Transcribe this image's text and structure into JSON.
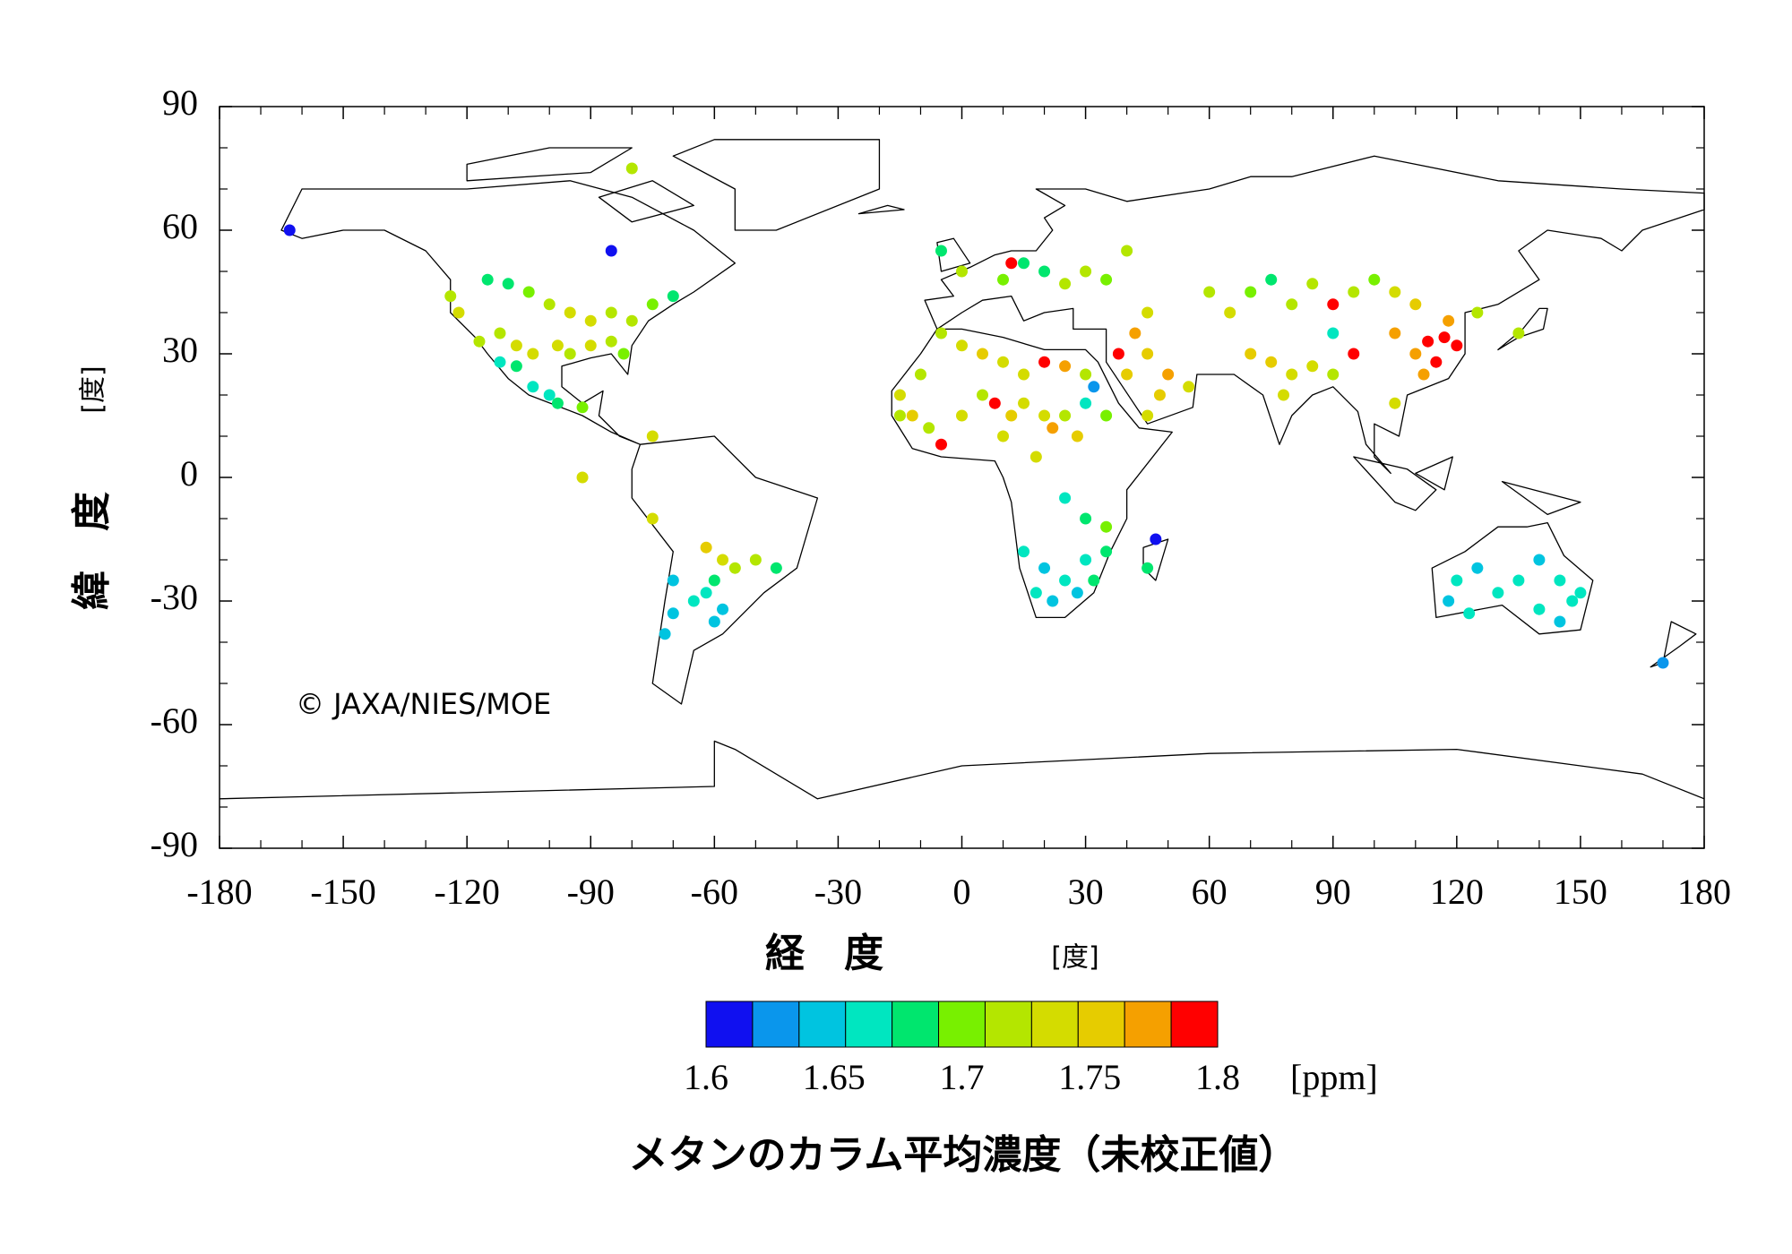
{
  "chart_data": {
    "type": "scatter",
    "title": "メタンのカラム平均濃度（未校正値）",
    "x_label": "経　度",
    "x_unit": "[度]",
    "y_label": "緯　度",
    "y_unit": "[度]",
    "copyright": "© JAXA/NIES/MOE",
    "colorbar_unit": "[ppm]",
    "xlim": [
      -180,
      180
    ],
    "ylim": [
      -90,
      90
    ],
    "xticks": [
      -180,
      -150,
      -120,
      -90,
      -60,
      -30,
      0,
      30,
      60,
      90,
      120,
      150,
      180
    ],
    "yticks": [
      -90,
      -60,
      -30,
      0,
      30,
      60,
      90
    ],
    "clim": [
      1.6,
      1.8
    ],
    "cticks": [
      1.6,
      1.65,
      1.7,
      1.75,
      1.8
    ],
    "colors": [
      "#1010f0",
      "#0a96ec",
      "#00c4e0",
      "#00e6c0",
      "#00e66e",
      "#78f000",
      "#b4e600",
      "#d4dc00",
      "#e6cc00",
      "#f5a000",
      "#ff0000"
    ],
    "x": [
      -163,
      -85,
      -80,
      -124,
      -122,
      -115,
      -110,
      -105,
      -100,
      -95,
      -90,
      -85,
      -80,
      -75,
      -70,
      -112,
      -108,
      -104,
      -98,
      -95,
      -90,
      -85,
      -82,
      -117,
      -108,
      -104,
      -100,
      -98,
      -92,
      -112,
      -92,
      -75,
      -75,
      -62,
      -58,
      -55,
      -50,
      -45,
      -60,
      -62,
      -58,
      -60,
      -65,
      -70,
      -72,
      -70,
      -5,
      0,
      5,
      10,
      15,
      20,
      25,
      30,
      -10,
      -15,
      -12,
      -8,
      -5,
      0,
      5,
      8,
      12,
      15,
      20,
      25,
      30,
      32,
      35,
      28,
      22,
      18,
      10,
      -15,
      25,
      30,
      35,
      15,
      20,
      25,
      30,
      28,
      22,
      18,
      32,
      35,
      47,
      45,
      0,
      10,
      15,
      20,
      25,
      30,
      35,
      12,
      -5,
      40,
      45,
      42,
      45,
      50,
      48,
      55,
      45,
      40,
      38,
      60,
      65,
      70,
      75,
      80,
      85,
      90,
      95,
      100,
      105,
      110,
      70,
      75,
      80,
      85,
      90,
      78,
      95,
      90,
      105,
      110,
      113,
      117,
      120,
      115,
      118,
      112,
      105,
      125,
      135,
      120,
      125,
      130,
      135,
      140,
      145,
      148,
      150,
      145,
      140,
      118,
      123,
      170
    ],
    "y": [
      60,
      55,
      75,
      44,
      40,
      48,
      47,
      45,
      42,
      40,
      38,
      40,
      38,
      42,
      44,
      35,
      32,
      30,
      32,
      30,
      32,
      33,
      30,
      33,
      27,
      22,
      20,
      18,
      17,
      28,
      0,
      10,
      -10,
      -17,
      -20,
      -22,
      -20,
      -22,
      -25,
      -28,
      -32,
      -35,
      -30,
      -33,
      -38,
      -25,
      35,
      32,
      30,
      28,
      25,
      28,
      27,
      25,
      25,
      20,
      15,
      12,
      8,
      15,
      20,
      18,
      15,
      18,
      15,
      15,
      18,
      22,
      15,
      10,
      12,
      5,
      10,
      15,
      -5,
      -10,
      -12,
      -18,
      -22,
      -25,
      -20,
      -28,
      -30,
      -28,
      -25,
      -18,
      -15,
      -22,
      50,
      48,
      52,
      50,
      47,
      50,
      48,
      52,
      55,
      55,
      40,
      35,
      30,
      25,
      20,
      22,
      15,
      25,
      30,
      45,
      40,
      45,
      48,
      42,
      47,
      42,
      45,
      48,
      45,
      42,
      30,
      28,
      25,
      27,
      25,
      20,
      30,
      35,
      35,
      30,
      33,
      34,
      32,
      28,
      38,
      25,
      18,
      40,
      35,
      -25,
      -22,
      -28,
      -25,
      -20,
      -25,
      -30,
      -28,
      -35,
      -32,
      -30,
      -33,
      -45
    ],
    "values": [
      1.6,
      1.6,
      1.72,
      1.72,
      1.73,
      1.68,
      1.69,
      1.7,
      1.72,
      1.73,
      1.74,
      1.71,
      1.72,
      1.7,
      1.69,
      1.72,
      1.73,
      1.74,
      1.73,
      1.72,
      1.74,
      1.71,
      1.7,
      1.71,
      1.68,
      1.66,
      1.67,
      1.68,
      1.7,
      1.67,
      1.74,
      1.74,
      1.74,
      1.76,
      1.73,
      1.72,
      1.71,
      1.68,
      1.69,
      1.67,
      1.65,
      1.64,
      1.66,
      1.65,
      1.64,
      1.65,
      1.72,
      1.74,
      1.75,
      1.73,
      1.74,
      1.8,
      1.78,
      1.72,
      1.71,
      1.73,
      1.76,
      1.72,
      1.8,
      1.74,
      1.72,
      1.8,
      1.76,
      1.73,
      1.74,
      1.71,
      1.66,
      1.62,
      1.7,
      1.75,
      1.78,
      1.74,
      1.73,
      1.71,
      1.67,
      1.68,
      1.7,
      1.66,
      1.65,
      1.66,
      1.67,
      1.65,
      1.64,
      1.66,
      1.68,
      1.69,
      1.6,
      1.68,
      1.71,
      1.7,
      1.68,
      1.69,
      1.71,
      1.72,
      1.7,
      1.8,
      1.69,
      1.71,
      1.74,
      1.78,
      1.76,
      1.77,
      1.75,
      1.74,
      1.73,
      1.76,
      1.8,
      1.72,
      1.73,
      1.7,
      1.69,
      1.72,
      1.71,
      1.8,
      1.72,
      1.7,
      1.73,
      1.76,
      1.75,
      1.76,
      1.74,
      1.73,
      1.72,
      1.74,
      1.8,
      1.67,
      1.78,
      1.77,
      1.8,
      1.8,
      1.8,
      1.8,
      1.77,
      1.78,
      1.74,
      1.72,
      1.71,
      1.66,
      1.65,
      1.67,
      1.66,
      1.65,
      1.67,
      1.66,
      1.67,
      1.64,
      1.66,
      1.65,
      1.66,
      1.63
    ]
  }
}
